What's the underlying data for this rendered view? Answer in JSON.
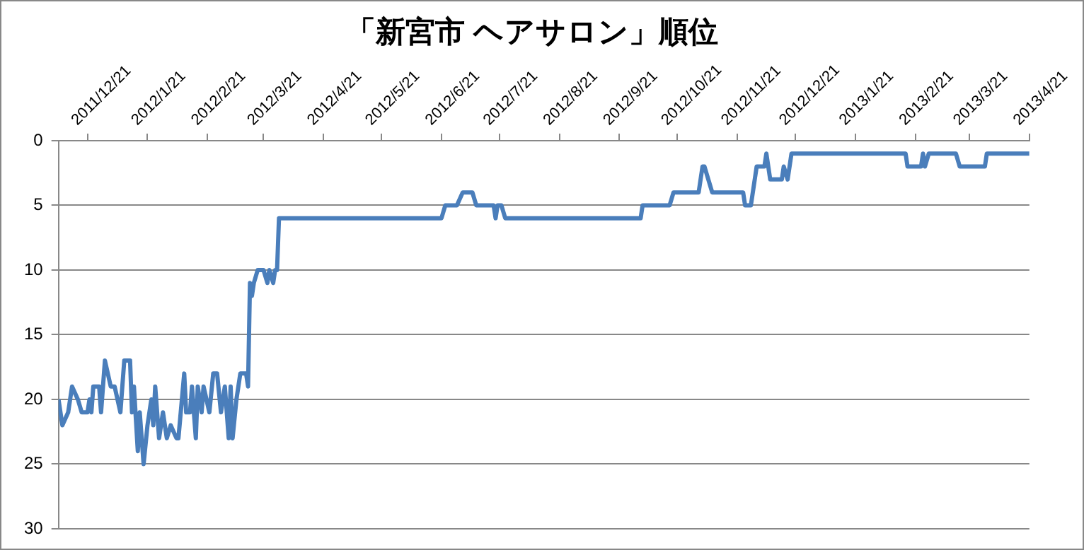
{
  "chart_data": {
    "type": "line",
    "title": "「新宮市 ヘアサロン」順位",
    "x": [
      "2011-12-06",
      "2011-12-08",
      "2011-12-11",
      "2011-12-13",
      "2011-12-16",
      "2011-12-18",
      "2011-12-21",
      "2011-12-22",
      "2011-12-23",
      "2011-12-24",
      "2011-12-27",
      "2011-12-28",
      "2011-12-30",
      "2012-01-02",
      "2012-01-04",
      "2012-01-07",
      "2012-01-09",
      "2012-01-12",
      "2012-01-13",
      "2012-01-14",
      "2012-01-16",
      "2012-01-17",
      "2012-01-19",
      "2012-01-21",
      "2012-01-23",
      "2012-01-24",
      "2012-01-25",
      "2012-01-27",
      "2012-01-29",
      "2012-01-31",
      "2012-02-02",
      "2012-02-05",
      "2012-02-06",
      "2012-02-09",
      "2012-02-10",
      "2012-02-12",
      "2012-02-13",
      "2012-02-15",
      "2012-02-16",
      "2012-02-18",
      "2012-02-19",
      "2012-02-22",
      "2012-02-24",
      "2012-02-26",
      "2012-02-28",
      "2012-03-01",
      "2012-03-03",
      "2012-03-04",
      "2012-03-05",
      "2012-03-07",
      "2012-03-09",
      "2012-03-12",
      "2012-03-13",
      "2012-03-14",
      "2012-03-15",
      "2012-03-16",
      "2012-03-18",
      "2012-03-21",
      "2012-03-23",
      "2012-03-24",
      "2012-03-26",
      "2012-03-27",
      "2012-03-28",
      "2012-03-29",
      "2012-06-21",
      "2012-06-23",
      "2012-06-29",
      "2012-07-02",
      "2012-07-07",
      "2012-07-09",
      "2012-07-18",
      "2012-07-19",
      "2012-07-20",
      "2012-07-22",
      "2012-07-24",
      "2012-10-02",
      "2012-10-03",
      "2012-10-17",
      "2012-10-19",
      "2012-11-01",
      "2012-11-03",
      "2012-11-04",
      "2012-11-06",
      "2012-11-08",
      "2012-11-24",
      "2012-11-25",
      "2012-11-28",
      "2012-11-30",
      "2012-12-01",
      "2012-12-05",
      "2012-12-06",
      "2012-12-08",
      "2012-12-14",
      "2012-12-15",
      "2012-12-17",
      "2012-12-19",
      "2013-02-16",
      "2013-02-17",
      "2013-02-24",
      "2013-02-25",
      "2013-02-26",
      "2013-02-28",
      "2013-03-14",
      "2013-03-16",
      "2013-03-29",
      "2013-03-30",
      "2013-04-21"
    ],
    "series": [
      {
        "color": "#4a7ebb",
        "values": [
          20,
          22,
          21,
          19,
          20,
          21,
          21,
          20,
          21,
          19,
          19,
          21,
          17,
          19,
          19,
          21,
          17,
          17,
          21,
          19,
          24,
          21,
          25,
          22,
          20,
          22,
          19,
          23,
          21,
          23,
          22,
          23,
          23,
          18,
          21,
          21,
          19,
          23,
          19,
          21,
          19,
          21,
          18,
          18,
          21,
          19,
          23,
          19,
          23,
          20,
          18,
          18,
          19,
          11,
          12,
          11,
          10,
          10,
          11,
          10,
          11,
          10,
          10,
          6,
          6,
          5,
          5,
          4,
          4,
          5,
          5,
          6,
          5,
          5,
          6,
          6,
          5,
          5,
          4,
          4,
          2,
          2,
          3,
          4,
          4,
          5,
          5,
          3,
          2,
          2,
          1,
          3,
          3,
          2,
          3,
          1,
          1,
          2,
          2,
          1,
          2,
          1,
          1,
          2,
          2,
          1,
          1
        ]
      }
    ],
    "xlim": [
      "2011-12-06",
      "2013-04-21"
    ],
    "xticks": [
      {
        "value": "2011-12-21",
        "label": "2011/12/21"
      },
      {
        "value": "2012-01-21",
        "label": "2012/1/21"
      },
      {
        "value": "2012-02-21",
        "label": "2012/2/21"
      },
      {
        "value": "2012-03-21",
        "label": "2012/3/21"
      },
      {
        "value": "2012-04-21",
        "label": "2012/4/21"
      },
      {
        "value": "2012-05-21",
        "label": "2012/5/21"
      },
      {
        "value": "2012-06-21",
        "label": "2012/6/21"
      },
      {
        "value": "2012-07-21",
        "label": "2012/7/21"
      },
      {
        "value": "2012-08-21",
        "label": "2012/8/21"
      },
      {
        "value": "2012-09-21",
        "label": "2012/9/21"
      },
      {
        "value": "2012-10-21",
        "label": "2012/10/21"
      },
      {
        "value": "2012-11-21",
        "label": "2012/11/21"
      },
      {
        "value": "2012-12-21",
        "label": "2012/12/21"
      },
      {
        "value": "2013-01-21",
        "label": "2013/1/21"
      },
      {
        "value": "2013-02-21",
        "label": "2013/2/21"
      },
      {
        "value": "2013-03-21",
        "label": "2013/3/21"
      },
      {
        "value": "2013-04-21",
        "label": "2013/4/21"
      }
    ],
    "ylim": [
      30,
      0
    ],
    "yticks": [
      0,
      5,
      10,
      15,
      20,
      25,
      30
    ],
    "grid": "y"
  }
}
